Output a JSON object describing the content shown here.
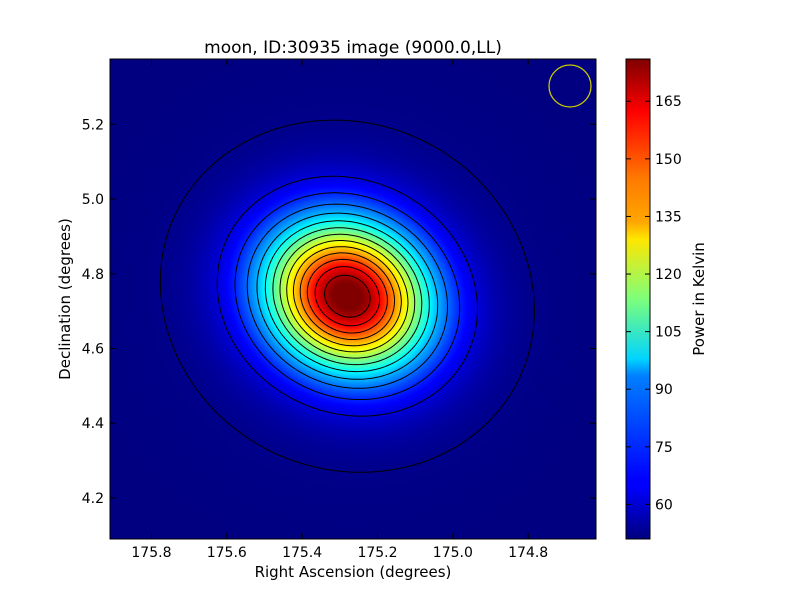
{
  "chart_data": {
    "type": "heatmap",
    "title": "moon, ID:30935 image (9000.0,LL)",
    "xlabel": "Right Ascension (degrees)",
    "ylabel": "Declination (degrees)",
    "x_ticks": [
      "175.8",
      "175.6",
      "175.4",
      "175.2",
      "175.0",
      "174.8"
    ],
    "y_ticks": [
      "5.2",
      "5.0",
      "4.8",
      "4.6",
      "4.4",
      "4.2"
    ],
    "xlim": [
      175.91,
      174.62
    ],
    "ylim": [
      4.09,
      5.375
    ],
    "colorbar": {
      "label": "Power in Kelvin",
      "ticks": [
        "60",
        "75",
        "90",
        "105",
        "120",
        "135",
        "150",
        "165"
      ],
      "range": [
        51,
        176
      ],
      "colormap": "jet"
    },
    "source_peak": {
      "ra": 175.28,
      "dec": 4.74,
      "value_K": 176
    },
    "background_K": 51,
    "contour_levels_K": [
      52.5,
      62,
      71,
      80,
      89,
      98,
      107,
      116,
      125,
      134,
      143,
      152,
      161,
      170
    ],
    "beam_circle": {
      "ra": 174.66,
      "dec": 5.305,
      "color": "#c8c800"
    },
    "grid": false
  }
}
